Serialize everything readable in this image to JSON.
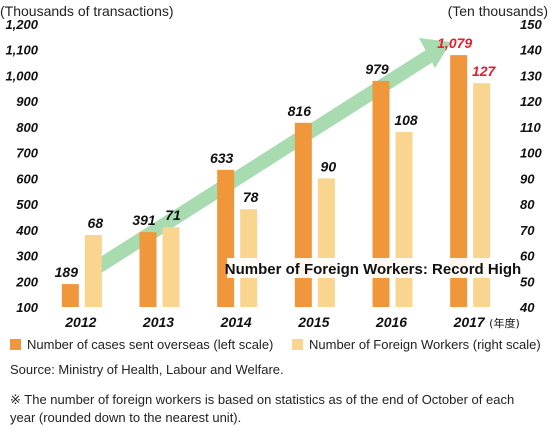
{
  "chart_data": {
    "type": "bar",
    "left_axis_unit": "(Thousands of transactions)",
    "right_axis_unit": "(Ten thousands)",
    "categories": [
      "2012",
      "2013",
      "2014",
      "2015",
      "2016",
      "2017"
    ],
    "year_suffix": "(年度)",
    "left_ticks": [
      "100",
      "200",
      "300",
      "400",
      "500",
      "600",
      "700",
      "800",
      "900",
      "1,000",
      "1,100",
      "1,200"
    ],
    "right_ticks": [
      "40",
      "50",
      "60",
      "70",
      "80",
      "90",
      "100",
      "110",
      "120",
      "130",
      "140",
      "150"
    ],
    "left_ylim": [
      100,
      1200
    ],
    "right_ylim": [
      40,
      150
    ],
    "series": [
      {
        "name": "Number of cases sent overseas (left scale)",
        "axis": "left",
        "color": "#f0963b",
        "values": [
          189,
          391,
          633,
          816,
          979,
          1079
        ],
        "labels": [
          "189",
          "391",
          "633",
          "816",
          "979",
          "1,079"
        ]
      },
      {
        "name": "Number of Foreign Workers (right scale)",
        "axis": "right",
        "color": "#fad590",
        "values": [
          68,
          71,
          78,
          90,
          108,
          127
        ],
        "labels": [
          "68",
          "71",
          "78",
          "90",
          "108",
          "127"
        ]
      }
    ],
    "highlight_color": "#e5202e",
    "trend_color": "#a8dbb0",
    "annotation": "Number of Foreign Workers: Record High",
    "grid": false
  },
  "footer": {
    "source": "Source: Ministry of Health, Labour and Welfare.",
    "note": "※ The number of foreign workers is based on statistics as of the end of October of each year (rounded down to the nearest unit)."
  }
}
